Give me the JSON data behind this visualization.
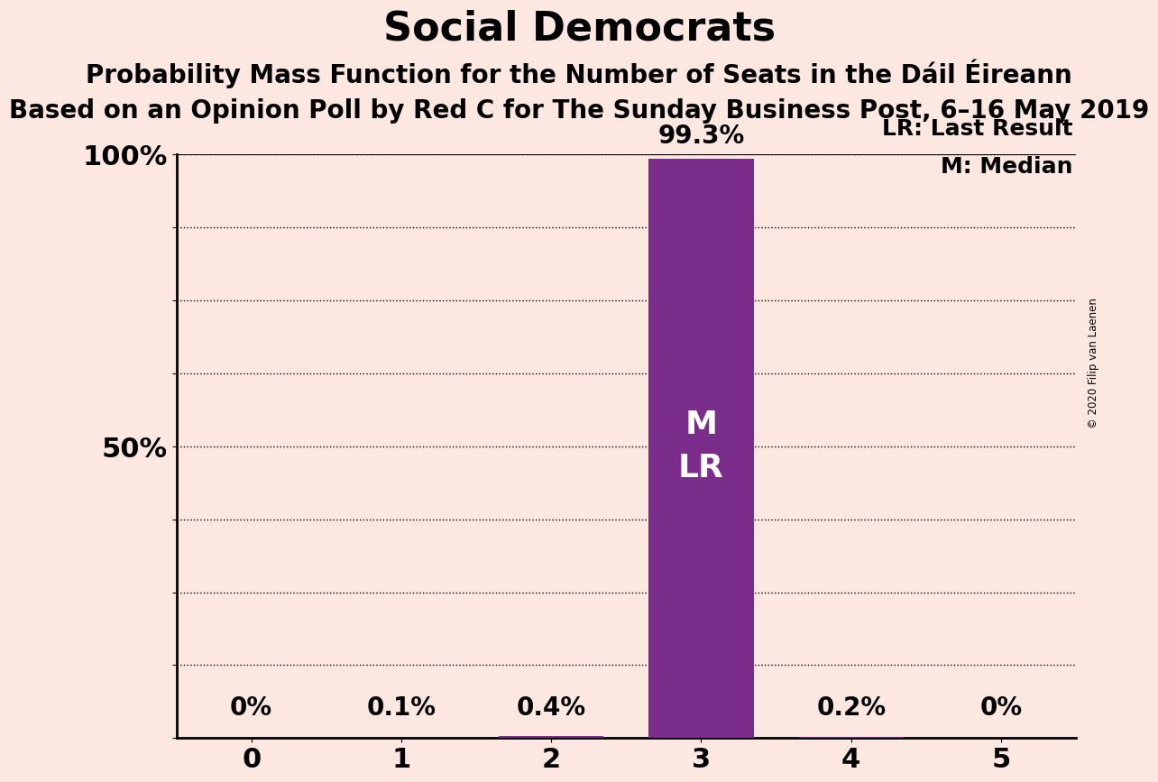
{
  "title": "Social Democrats",
  "subtitle1": "Probability Mass Function for the Number of Seats in the Dáil Éireann",
  "subtitle2": "Based on an Opinion Poll by Red C for The Sunday Business Post, 6–16 May 2019",
  "copyright": "© 2020 Filip van Laenen",
  "categories": [
    0,
    1,
    2,
    3,
    4,
    5
  ],
  "values": [
    0.0,
    0.001,
    0.004,
    0.993,
    0.002,
    0.0
  ],
  "bar_labels": [
    "0%",
    "0.1%",
    "0.4%",
    "99.3%",
    "0.2%",
    "0%"
  ],
  "bar_color": "#7b2d8b",
  "highlight_index": 3,
  "legend_lr": "LR: Last Result",
  "legend_m": "M: Median",
  "bar_label_inside": "M\nLR",
  "background_color": "#fce8e0",
  "title_fontsize": 32,
  "subtitle_fontsize": 20,
  "label_fontsize": 18,
  "tick_fontsize": 22,
  "bar_value_fontsize": 20,
  "inside_label_fontsize": 26,
  "xlim": [
    -0.5,
    5.5
  ],
  "ylim": [
    0,
    1.0
  ],
  "yticks": [
    0.0,
    0.125,
    0.25,
    0.375,
    0.5,
    0.625,
    0.75,
    0.875,
    1.0
  ],
  "ytick_shown": [
    0.5,
    1.0
  ],
  "ytick_labels_map": {
    "0.5": "50%",
    "1.0": "100%"
  },
  "grid_ticks": [
    0.125,
    0.25,
    0.375,
    0.625,
    0.75,
    0.875
  ],
  "solid_ticks": [
    0.5,
    1.0
  ],
  "bar_width": 0.7
}
